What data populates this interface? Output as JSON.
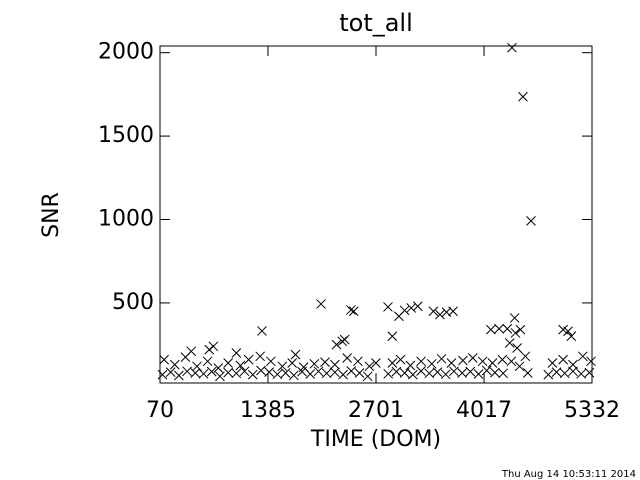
{
  "chart_data": {
    "type": "scatter",
    "title": "tot_all",
    "x_label": "TIME (DOM)",
    "y_label": "SNR",
    "timestamp": "Thu Aug 14 10:53:11 2014",
    "color": "#000000",
    "marker": "x",
    "xlim": [
      70,
      5332
    ],
    "xticks": [
      70,
      1385,
      2701,
      4017,
      5332
    ],
    "ylim": [
      20,
      2040
    ],
    "yticks": [
      500,
      1000,
      1500,
      2000
    ],
    "x": [
      100,
      200,
      300,
      400,
      500,
      600,
      700,
      800,
      900,
      1000,
      1100,
      1200,
      1300,
      1400,
      1500,
      1600,
      1700,
      1800,
      1900,
      2000,
      2100,
      2200,
      2300,
      2400,
      2500,
      2600,
      2850,
      2950,
      3050,
      3150,
      3250,
      3350,
      3450,
      3550,
      3650,
      3750,
      3850,
      3950,
      4050,
      4150,
      4250,
      4350,
      4450,
      4550,
      4800,
      4900,
      5000,
      5100,
      5200,
      5300,
      120,
      250,
      380,
      520,
      650,
      780,
      900,
      1050,
      1150,
      1290,
      1420,
      1560,
      1680,
      1820,
      1950,
      2080,
      2200,
      2350,
      2480,
      2620,
      2900,
      3000,
      3120,
      3250,
      3380,
      3500,
      3620,
      3760,
      3880,
      4000,
      4120,
      4240,
      4330,
      4420,
      4520,
      4850,
      4980,
      5100,
      5220,
      5320,
      4357,
      4491,
      4589,
      2031,
      2396,
      2430,
      2847,
      2900,
      2980,
      3050,
      3130,
      3210,
      3400,
      3480,
      3560,
      3640,
      4100,
      4200,
      4300,
      4400,
      4390,
      4460,
      4980,
      5040,
      5080,
      1312,
      2290,
      2320,
      2220,
      1720,
      670,
      720,
      1000,
      450,
      2700
    ],
    "values": [
      70,
      85,
      65,
      90,
      80,
      75,
      88,
      60,
      82,
      78,
      90,
      70,
      95,
      85,
      72,
      80,
      66,
      88,
      74,
      90,
      78,
      84,
      70,
      92,
      80,
      60,
      75,
      88,
      80,
      70,
      92,
      78,
      85,
      72,
      90,
      80,
      88,
      74,
      95,
      82,
      78,
      150,
      120,
      80,
      70,
      85,
      78,
      90,
      75,
      82,
      160,
      130,
      175,
      120,
      150,
      110,
      140,
      125,
      160,
      180,
      150,
      120,
      140,
      115,
      135,
      145,
      130,
      170,
      150,
      120,
      140,
      160,
      125,
      150,
      135,
      165,
      140,
      155,
      170,
      150,
      140,
      160,
      260,
      230,
      180,
      140,
      160,
      130,
      180,
      150,
      2030,
      1736,
      992,
      494,
      458,
      450,
      476,
      300,
      420,
      455,
      470,
      480,
      450,
      430,
      445,
      450,
      340,
      345,
      345,
      320,
      410,
      340,
      340,
      330,
      300,
      332,
      270,
      280,
      250,
      190,
      220,
      240,
      200,
      210,
      140
    ]
  }
}
